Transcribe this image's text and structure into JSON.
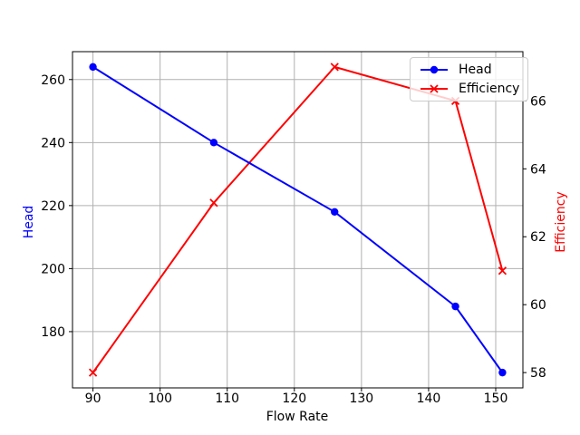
{
  "chart_data": {
    "type": "line",
    "title": "",
    "xlabel": "Flow Rate",
    "ylabel_left": "Head",
    "ylabel_right": "Efficiency",
    "x": [
      90,
      108,
      126,
      144,
      151
    ],
    "series": [
      {
        "name": "Head",
        "axis": "left",
        "color": "#0000ff",
        "marker": "circle",
        "values": [
          264,
          240,
          218,
          188,
          167
        ]
      },
      {
        "name": "Efficiency",
        "axis": "right",
        "color": "#ff0000",
        "marker": "x",
        "values": [
          58,
          63,
          67,
          66,
          61
        ]
      }
    ],
    "xlim": [
      86.95,
      154.05
    ],
    "ylim_left": [
      162.15,
      268.85
    ],
    "ylim_right": [
      57.55,
      67.45
    ],
    "xticks": [
      90,
      100,
      110,
      120,
      130,
      140,
      150
    ],
    "yticks_left": [
      180,
      200,
      220,
      240,
      260
    ],
    "yticks_right": [
      58,
      60,
      62,
      64,
      66
    ],
    "grid": true,
    "grid_color": "#b0b0b0",
    "spine_color": "#000000",
    "background": "#ffffff",
    "legend_position": "upper right"
  }
}
